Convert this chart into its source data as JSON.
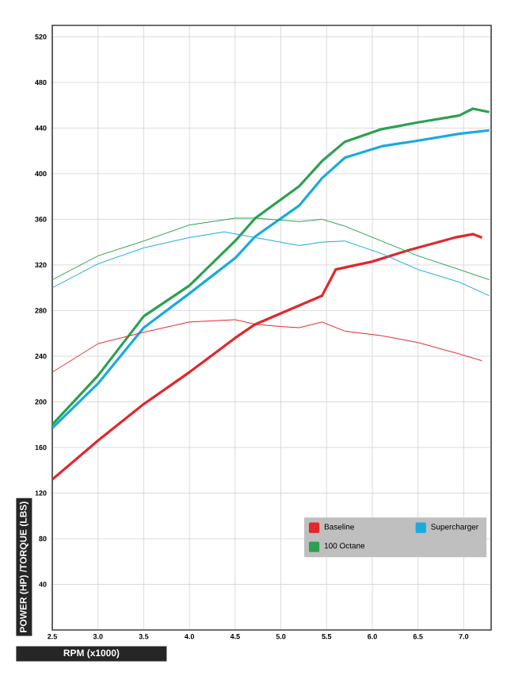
{
  "chart_data": {
    "type": "line",
    "xlabel": "RPM (x1000)",
    "ylabel": "POWER (HP) /TORQUE (LBS)",
    "xlim": [
      2.5,
      7.3
    ],
    "xticks": [
      2.5,
      {
        "value": 3,
        "label": "3.0"
      },
      3.5,
      {
        "value": 4,
        "label": "4.0"
      },
      4.5,
      {
        "value": 5,
        "label": "5.0"
      },
      5.5,
      {
        "value": 6,
        "label": "6.0"
      },
      6.5,
      {
        "value": 7,
        "label": "7.0"
      }
    ],
    "ylim": [
      0,
      530
    ],
    "yticks": [
      40,
      80,
      120,
      160,
      200,
      240,
      280,
      320,
      360,
      400,
      440,
      480,
      520
    ],
    "grid": true,
    "legend": "bottom right",
    "marker": "none",
    "line_style": "solid",
    "series": [
      {
        "name": "Baseline",
        "color": "#e4262b",
        "x": [
          2.5,
          3.0,
          3.5,
          4.0,
          4.5,
          4.72,
          5.45,
          5.6,
          6.0,
          6.4,
          6.9,
          7.1,
          7.2
        ],
        "values": [
          132,
          166,
          198,
          226,
          256,
          268,
          293,
          316,
          323,
          333,
          344,
          347,
          344
        ]
      },
      {
        "name": "Supercharger",
        "color": "#1aa9e0",
        "x": [
          2.5,
          3.0,
          3.5,
          4.0,
          4.5,
          4.72,
          5.2,
          5.45,
          5.7,
          6.1,
          6.5,
          6.95,
          7.28
        ],
        "values": [
          177,
          216,
          265,
          295,
          326,
          345,
          372,
          396,
          414,
          424,
          429,
          435,
          438
        ]
      },
      {
        "name": "100 Octane",
        "color": "#2ca04f",
        "x": [
          2.5,
          3.0,
          3.5,
          4.0,
          4.5,
          4.72,
          5.2,
          5.45,
          5.7,
          6.1,
          6.5,
          6.95,
          7.1,
          7.28
        ],
        "values": [
          180,
          223,
          275,
          302,
          341,
          361,
          389,
          411,
          428,
          439,
          445,
          451,
          457,
          454
        ]
      },
      {
        "color": "#e4262b",
        "x": [
          2.5,
          3.0,
          3.5,
          4.0,
          4.5,
          4.72,
          5.0,
          5.2,
          5.45,
          5.7,
          6.1,
          6.5,
          6.95,
          7.2
        ],
        "values": [
          226,
          251,
          261,
          270,
          272,
          268,
          266,
          265,
          270,
          262,
          258,
          252,
          242,
          236
        ]
      },
      {
        "color": "#1aa9e0",
        "x": [
          2.5,
          3.0,
          3.5,
          4.0,
          4.38,
          4.72,
          5.2,
          5.45,
          5.7,
          6.1,
          6.5,
          6.95,
          7.28
        ],
        "values": [
          300,
          321,
          335,
          344,
          349,
          344,
          337,
          340,
          341,
          330,
          316,
          305,
          293
        ]
      },
      {
        "color": "#2ca04f",
        "x": [
          2.5,
          3.0,
          3.5,
          4.0,
          4.5,
          4.72,
          5.2,
          5.45,
          5.7,
          6.1,
          6.5,
          6.95,
          7.28
        ],
        "values": [
          307,
          328,
          341,
          355,
          361,
          361,
          358,
          360,
          354,
          341,
          328,
          316,
          307
        ]
      }
    ]
  }
}
